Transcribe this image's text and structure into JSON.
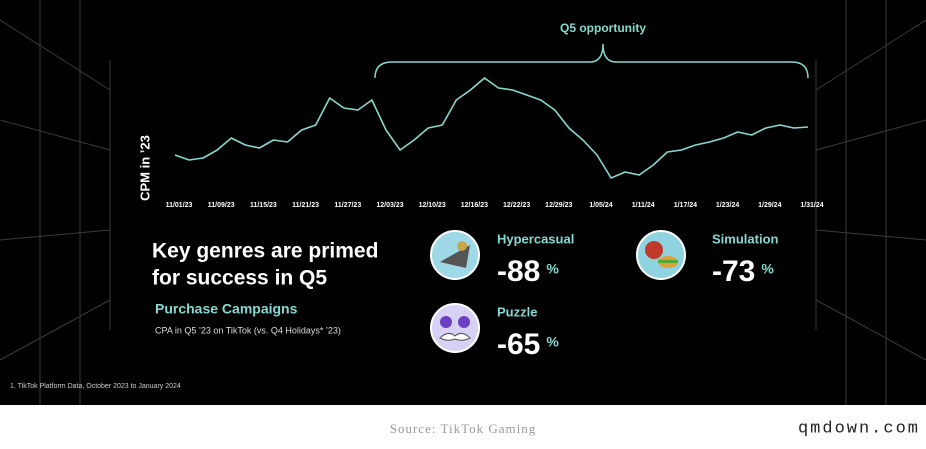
{
  "chart_data": {
    "type": "line",
    "ylabel": "CPM in ’23",
    "annotation": "Q5 opportunity",
    "categories": [
      "11/01/23",
      null,
      null,
      "11/09/23",
      null,
      null,
      "11/15/23",
      null,
      null,
      "11/21/23",
      null,
      null,
      "11/27/23",
      null,
      null,
      "12/03/23",
      null,
      null,
      "12/10/23",
      null,
      null,
      "12/16/23",
      null,
      null,
      "12/22/23",
      null,
      null,
      "12/29/23",
      null,
      null,
      "1/05/24",
      null,
      null,
      "1/11/24",
      null,
      null,
      "1/17/24",
      null,
      null,
      "1/23/24",
      null,
      null,
      "1/29/24",
      null,
      null,
      "1/31/24"
    ],
    "series": [
      {
        "color": "#86d9d1",
        "values": [
          45,
          40,
          42,
          50,
          62,
          55,
          52,
          60,
          58,
          70,
          75,
          102,
          92,
          90,
          100,
          70,
          50,
          60,
          72,
          75,
          100,
          110,
          122,
          112,
          110,
          105,
          100,
          90,
          72,
          60,
          45,
          22,
          28,
          25,
          35,
          48,
          50,
          55,
          58,
          62,
          68,
          65,
          72,
          75,
          72,
          73
        ]
      }
    ],
    "ylim": [
      20,
      130
    ]
  },
  "panel": {
    "headline": [
      "Key genres are primed",
      "for success in Q5"
    ],
    "subtitle": "Purchase Campaigns",
    "note": "CPA in Q5 ’23 on TikTok (vs. Q4 Holidays* ’23)",
    "unit": "%",
    "genres": [
      {
        "name": "Hypercasual",
        "value": "-88"
      },
      {
        "name": "Simulation",
        "value": "-73"
      },
      {
        "name": "Puzzle",
        "value": "-65"
      }
    ]
  },
  "footnote": "1. TikTok Platform Data, October 2023 to January 2024",
  "source": "Source: TikTok Gaming",
  "watermark": "qmdown.com"
}
